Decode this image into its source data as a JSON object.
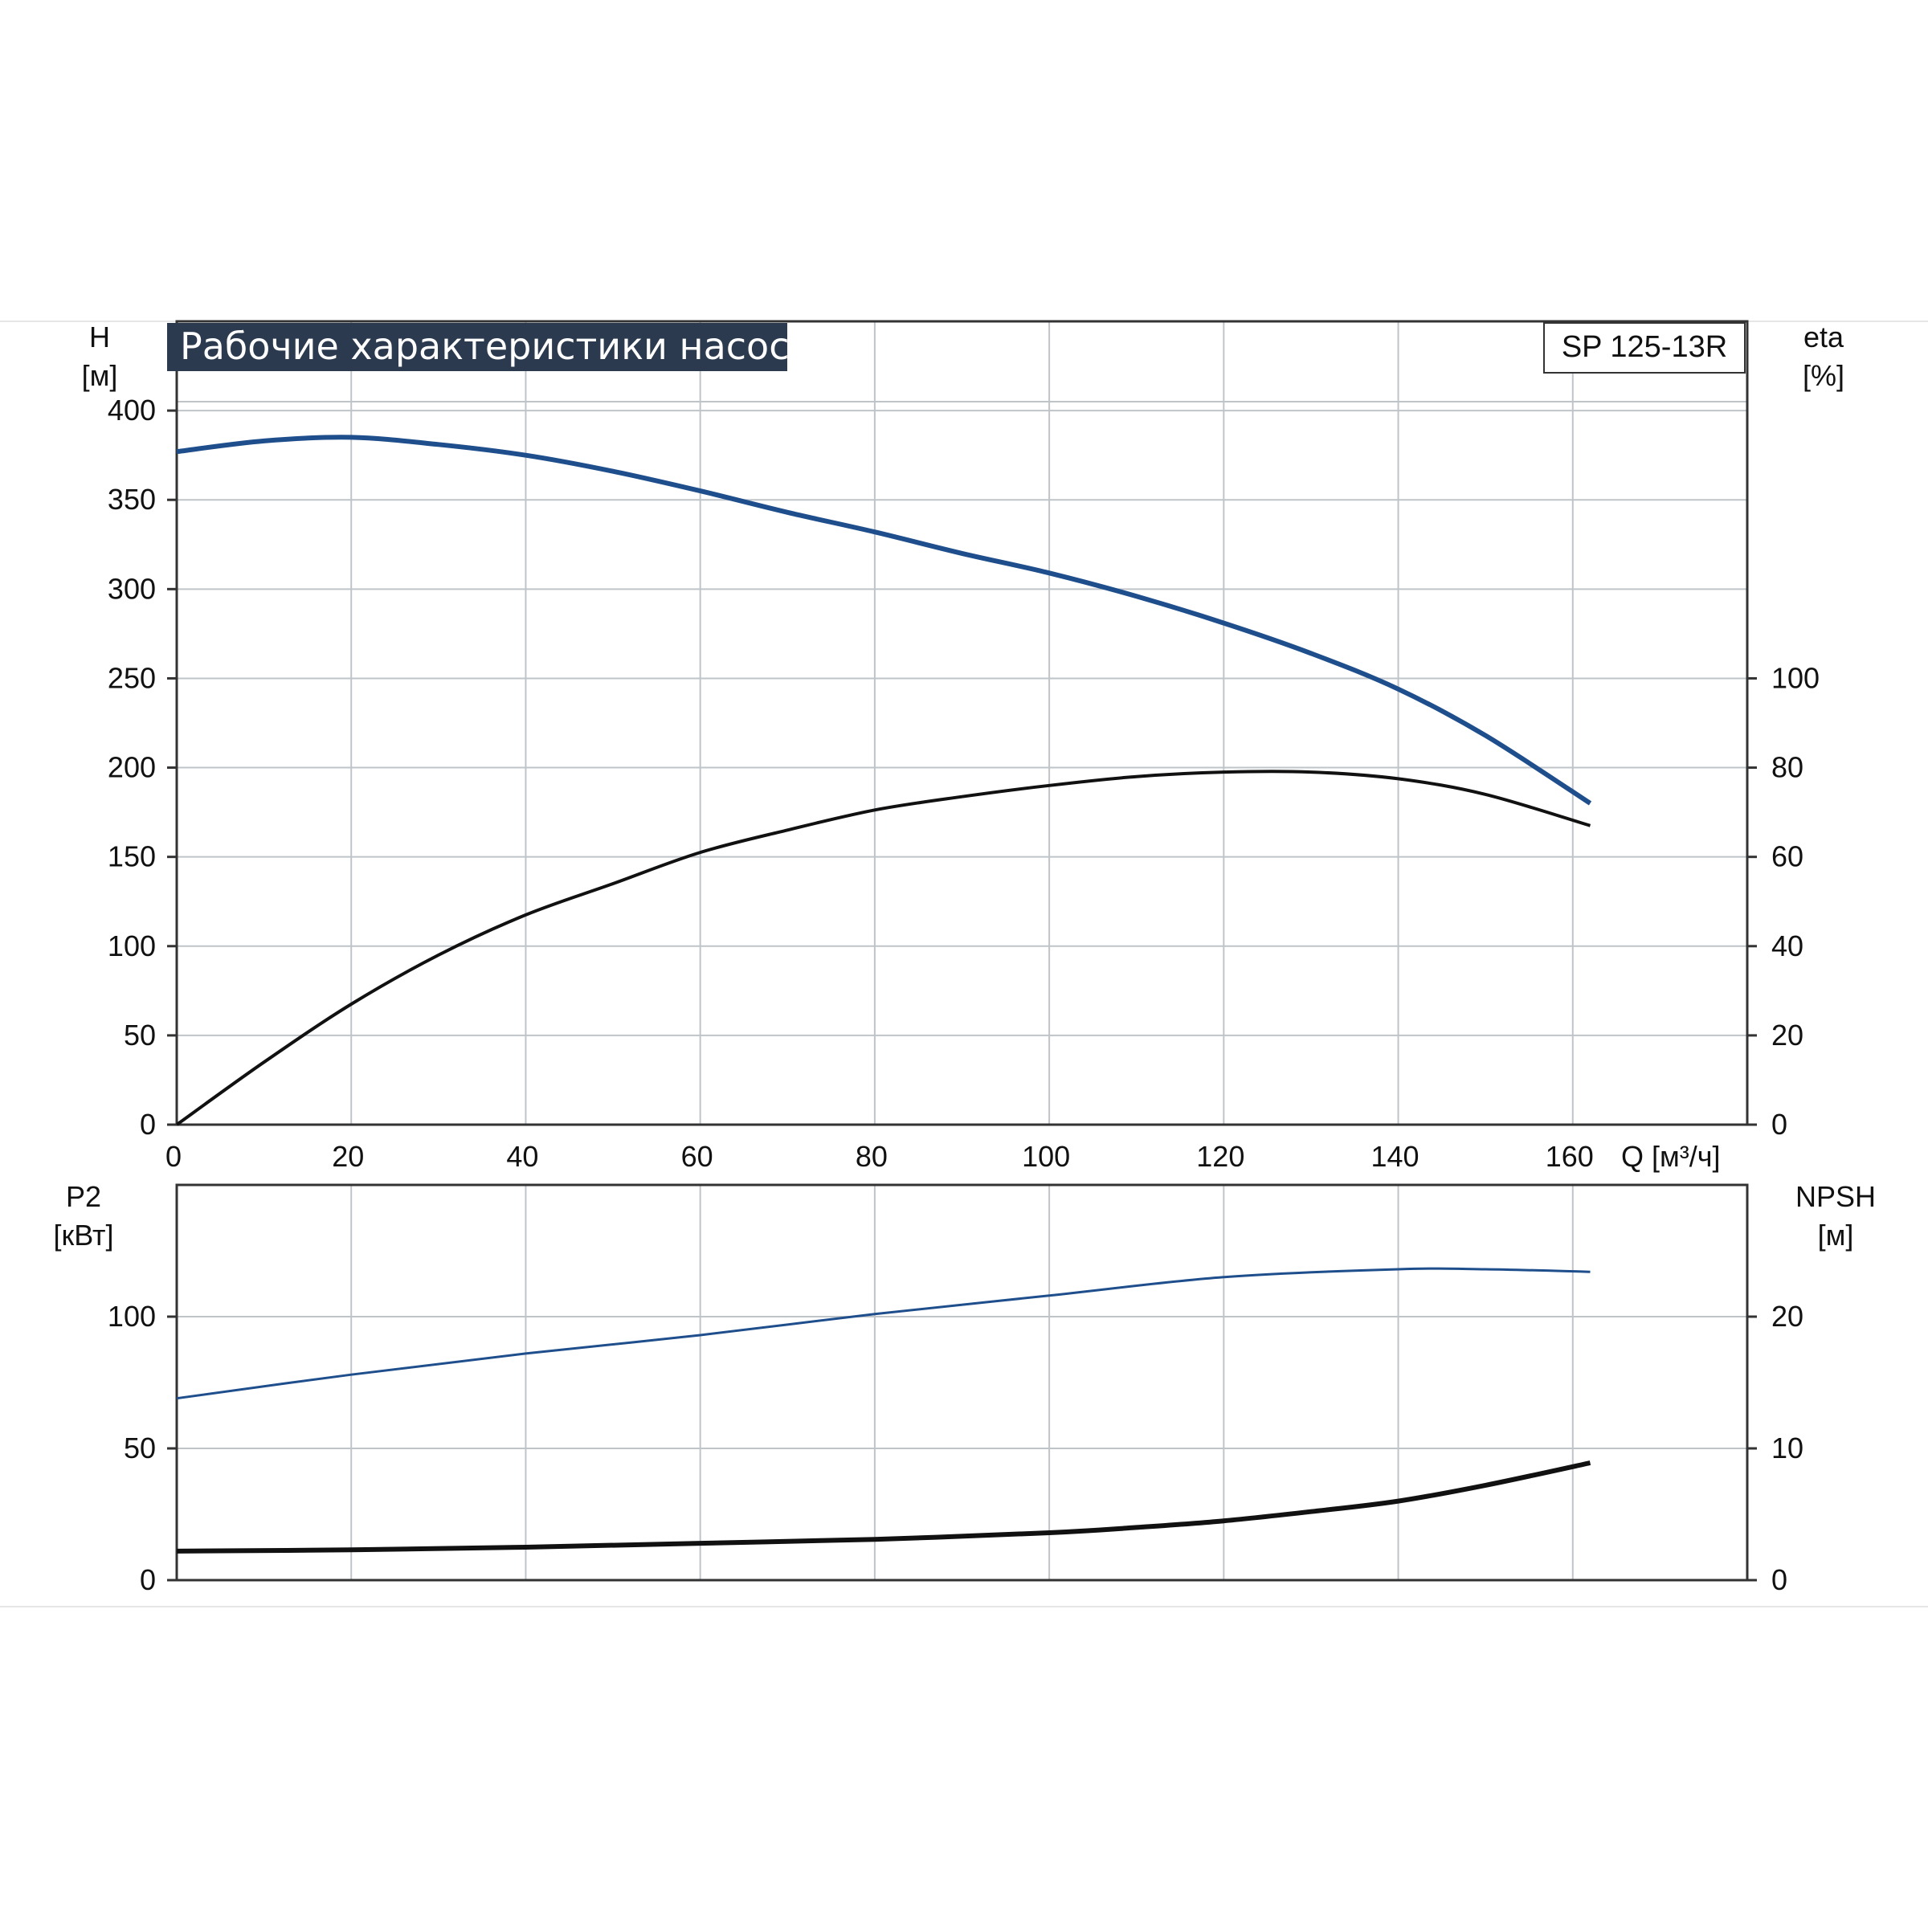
{
  "title": "Рабочие характеристики насоса",
  "model": "SP 125-13R",
  "colors": {
    "blue_series": "#1f4e8c",
    "black_series": "#111111",
    "grid": "#bfc4c9",
    "title_bg": "#2b3a4e"
  },
  "chart_data": [
    {
      "type": "line",
      "panel": "top",
      "x_axis": {
        "label": "Q [м³/ч]",
        "range": [
          0,
          180
        ],
        "ticks": [
          0,
          20,
          40,
          60,
          80,
          100,
          120,
          140,
          160
        ]
      },
      "y_axis_left": {
        "label_line1": "H",
        "label_line2": "[м]",
        "range": [
          0,
          450
        ],
        "ticks": [
          0,
          50,
          100,
          150,
          200,
          250,
          300,
          350,
          400
        ]
      },
      "y_axis_right": {
        "label_line1": "eta",
        "label_line2": "[%]",
        "range": [
          0,
          180
        ],
        "ticks": [
          0,
          20,
          40,
          60,
          80,
          100
        ]
      },
      "grid": true,
      "series": [
        {
          "axis": "left",
          "color": "#1f4e8c",
          "x": [
            0,
            10,
            20,
            30,
            40,
            50,
            60,
            70,
            80,
            90,
            100,
            110,
            120,
            130,
            140,
            150,
            162
          ],
          "y": [
            377,
            383,
            385,
            381,
            375,
            366,
            355,
            343,
            332,
            320,
            309,
            296,
            281,
            264,
            244,
            218,
            180
          ]
        },
        {
          "axis": "right",
          "color": "#111111",
          "x": [
            0,
            10,
            20,
            30,
            40,
            50,
            60,
            70,
            80,
            90,
            100,
            110,
            120,
            130,
            140,
            150,
            162
          ],
          "y": [
            0,
            14,
            27,
            38,
            47,
            54,
            61,
            66,
            70.5,
            73.5,
            76,
            78,
            79,
            79,
            77.5,
            74,
            67
          ]
        }
      ]
    },
    {
      "type": "line",
      "panel": "bottom",
      "x_axis": {
        "range": [
          0,
          180
        ],
        "ticks": [
          0,
          20,
          40,
          60,
          80,
          100,
          120,
          140,
          160
        ]
      },
      "y_axis_left": {
        "label_line1": "P2",
        "label_line2": "[кВт]",
        "range": [
          0,
          150
        ],
        "ticks": [
          0,
          50,
          100
        ]
      },
      "y_axis_right": {
        "label_line1": "NPSH",
        "label_line2": "[м]",
        "range": [
          0,
          30
        ],
        "ticks": [
          0,
          10,
          20
        ]
      },
      "grid": true,
      "series": [
        {
          "axis": "left",
          "color": "#1f4e8c",
          "x": [
            0,
            20,
            40,
            60,
            80,
            100,
            120,
            140,
            150,
            162
          ],
          "y": [
            69,
            78,
            86,
            93,
            101,
            108,
            115,
            118,
            118,
            117
          ]
        },
        {
          "axis": "right",
          "color": "#111111",
          "x": [
            0,
            20,
            40,
            60,
            80,
            100,
            110,
            120,
            130,
            140,
            150,
            162
          ],
          "y": [
            2.2,
            2.3,
            2.5,
            2.8,
            3.1,
            3.6,
            4.0,
            4.5,
            5.2,
            6.0,
            7.2,
            8.9
          ]
        }
      ]
    }
  ]
}
